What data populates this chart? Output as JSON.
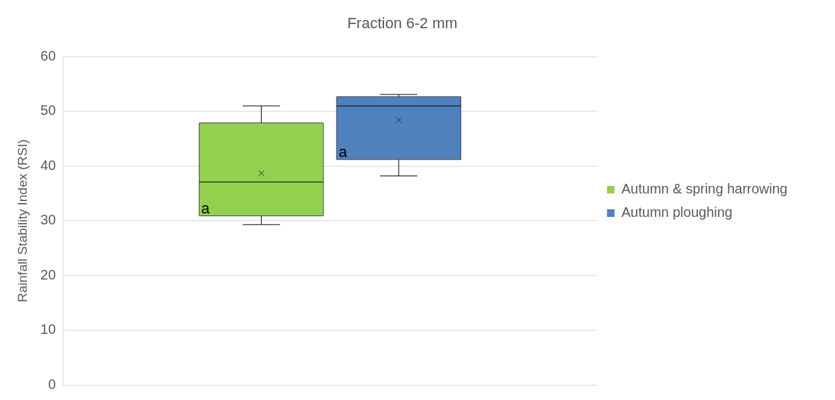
{
  "chart_data": {
    "type": "box",
    "title": "Fraction 6-2 mm",
    "ylabel": "Rainfall Stability Index (RSI)",
    "categories": [
      null
    ],
    "series": [
      {
        "name": "Autumn & spring harrowing",
        "color": "#92d050",
        "boxes": [
          {
            "low": 29.3,
            "q1": 30.9,
            "median": 37.1,
            "q3": 47.9,
            "high": 51.0,
            "mean": 38.7
          }
        ]
      },
      {
        "name": "Autumn ploughing",
        "color": "#4f81bd",
        "boxes": [
          {
            "low": 38.2,
            "q1": 41.2,
            "median": 51.0,
            "q3": 52.7,
            "high": 53.1,
            "mean": 48.4
          }
        ]
      }
    ],
    "ylim": [
      0,
      60
    ],
    "yticks": [
      0,
      10,
      20,
      30,
      40,
      50,
      60
    ],
    "grid": "y",
    "legend": "right",
    "tick_labels": "y",
    "marker": "cross",
    "annotations": [
      "a",
      "a"
    ]
  }
}
